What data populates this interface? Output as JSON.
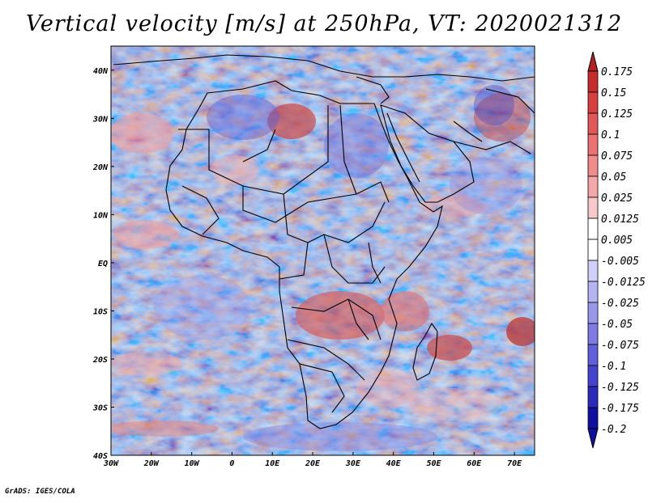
{
  "title": "Vertical velocity [m/s] at 250hPa, VT: 2020021312",
  "footer": "GrADS: IGES/COLA",
  "map": {
    "lon_range": [
      -30,
      75
    ],
    "lat_range": [
      -40,
      45
    ],
    "lon_ticks": [
      {
        "value": -30,
        "label": "30W"
      },
      {
        "value": -20,
        "label": "20W"
      },
      {
        "value": -10,
        "label": "10W"
      },
      {
        "value": 0,
        "label": "0"
      },
      {
        "value": 10,
        "label": "10E"
      },
      {
        "value": 20,
        "label": "20E"
      },
      {
        "value": 30,
        "label": "30E"
      },
      {
        "value": 40,
        "label": "40E"
      },
      {
        "value": 50,
        "label": "50E"
      },
      {
        "value": 60,
        "label": "60E"
      },
      {
        "value": 70,
        "label": "70E"
      }
    ],
    "lat_ticks": [
      {
        "value": 40,
        "label": "40N"
      },
      {
        "value": 30,
        "label": "30N"
      },
      {
        "value": 20,
        "label": "20N"
      },
      {
        "value": 10,
        "label": "10N"
      },
      {
        "value": 0,
        "label": "EQ"
      },
      {
        "value": -10,
        "label": "10S"
      },
      {
        "value": -20,
        "label": "20S"
      },
      {
        "value": -30,
        "label": "30S"
      },
      {
        "value": -40,
        "label": "40S"
      }
    ]
  },
  "colorbar": {
    "labels": [
      "0.175",
      "0.15",
      "0.125",
      "0.1",
      "0.075",
      "0.05",
      "0.025",
      "0.0125",
      "0.005",
      "-0.005",
      "-0.0125",
      "-0.025",
      "-0.05",
      "-0.075",
      "-0.1",
      "-0.125",
      "-0.175",
      "-0.2"
    ],
    "colors": [
      "#b22222",
      "#c62c2c",
      "#d84040",
      "#e25858",
      "#ea7272",
      "#f08c8c",
      "#f5a8a8",
      "#f9c8c8",
      "#ffffff",
      "#ffffff",
      "#d0d0f8",
      "#b4b4f2",
      "#9898ea",
      "#7c7ce2",
      "#6060da",
      "#4444cc",
      "#2a2abb",
      "#1010a0"
    ]
  }
}
